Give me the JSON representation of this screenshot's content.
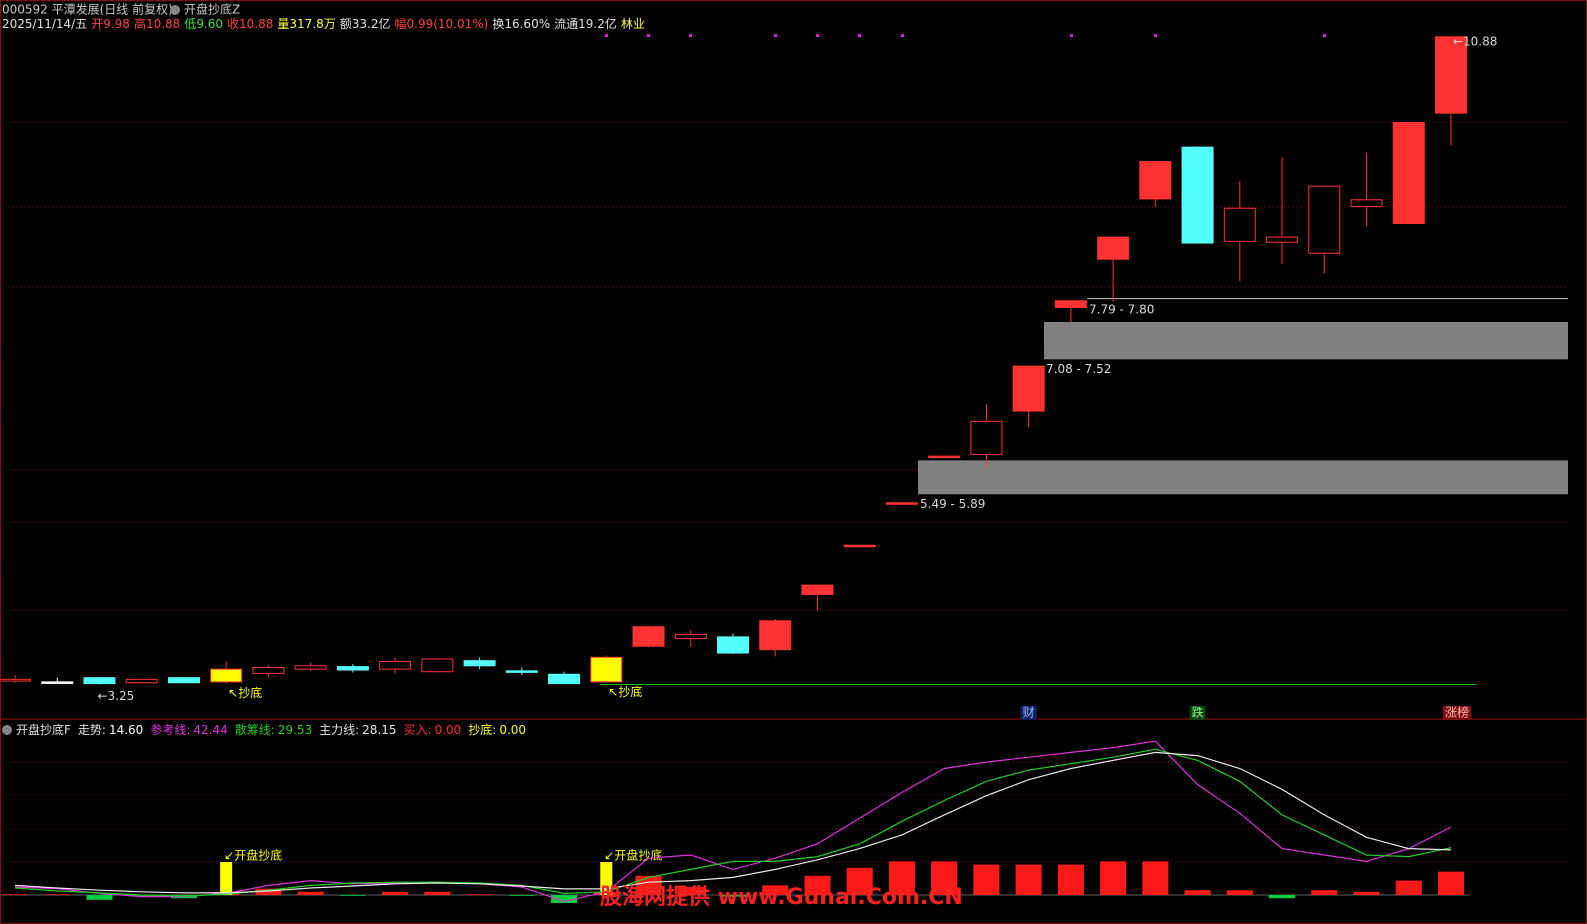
{
  "header": {
    "symbol": "000592 平潭发展(日线 前复权)",
    "indicator": "开盘抄底Z",
    "quote": [
      {
        "text": "2025/11/14/五",
        "color": "#e0e0e0"
      },
      {
        "text": "开9.98",
        "color": "#ff4040"
      },
      {
        "text": "高10.88",
        "color": "#ff4040"
      },
      {
        "text": "低9.60",
        "color": "#40e040"
      },
      {
        "text": "收10.88",
        "color": "#ff4040"
      },
      {
        "text": "量317.8万",
        "color": "#ffff40"
      },
      {
        "text": "额33.2亿",
        "color": "#e0e0e0"
      },
      {
        "text": "幅0.99(10.01%)",
        "color": "#ff4040"
      },
      {
        "text": "换16.60%",
        "color": "#e0e0e0"
      },
      {
        "text": "流通19.2亿",
        "color": "#e0e0e0"
      },
      {
        "text": "林业",
        "color": "#ffff40"
      }
    ]
  },
  "chart_data": [
    {
      "type": "candlestick",
      "open": [
        3.29,
        3.28,
        3.33,
        3.27,
        3.33,
        3.28,
        3.38,
        3.43,
        3.46,
        3.43,
        3.4,
        3.53,
        3.41,
        3.37,
        3.28,
        3.7,
        3.79,
        3.81,
        3.66,
        4.31,
        4.89,
        5.39,
        5.94,
        5.96,
        6.47,
        7.69,
        8.26,
        8.97,
        9.58,
        8.47,
        8.46,
        8.33,
        8.88,
        8.68,
        9.98
      ],
      "high": [
        3.36,
        3.33,
        3.34,
        3.32,
        3.34,
        3.52,
        3.48,
        3.51,
        3.49,
        3.57,
        3.56,
        3.57,
        3.45,
        3.4,
        3.59,
        3.94,
        3.89,
        3.85,
        4.02,
        4.42,
        4.89,
        5.39,
        5.94,
        6.55,
        7.0,
        7.77,
        8.52,
        9.41,
        9.59,
        9.18,
        9.46,
        9.12,
        9.51,
        9.87,
        10.88
      ],
      "low": [
        3.27,
        3.26,
        3.25,
        3.26,
        3.27,
        3.26,
        3.34,
        3.41,
        3.39,
        3.38,
        3.39,
        3.43,
        3.36,
        3.26,
        3.27,
        3.69,
        3.69,
        3.61,
        3.58,
        4.12,
        4.89,
        5.39,
        5.94,
        5.81,
        6.28,
        7.52,
        7.76,
        8.88,
        8.45,
        8.0,
        8.2,
        8.09,
        8.65,
        8.68,
        9.6
      ],
      "close": [
        3.31,
        3.28,
        3.26,
        3.31,
        3.27,
        3.43,
        3.45,
        3.47,
        3.42,
        3.52,
        3.55,
        3.47,
        3.4,
        3.26,
        3.57,
        3.93,
        3.84,
        3.62,
        4.0,
        4.42,
        4.89,
        5.39,
        5.94,
        6.35,
        7.0,
        7.77,
        8.52,
        9.41,
        8.45,
        8.86,
        8.52,
        9.12,
        8.96,
        9.87,
        10.88
      ],
      "style": [
        "up",
        "flat",
        "down",
        "up",
        "down",
        "signal",
        "up",
        "up",
        "down",
        "up",
        "up",
        "down",
        "down",
        "down",
        "signal",
        "filled",
        "up",
        "down",
        "filled",
        "filled",
        "filled",
        "filled",
        "filled",
        "up",
        "filled",
        "filled",
        "filled",
        "filled",
        "down",
        "up",
        "up",
        "up",
        "up",
        "filled",
        "filled"
      ],
      "colors": {
        "up": "#ff3232",
        "down": "#54ffff",
        "signal": "#ffff00",
        "flat": "#ffffff"
      },
      "ylim": [
        2.89,
        10.96
      ],
      "zones": [
        {
          "low": 7.08,
          "high": 7.52,
          "label": "7.08 - 7.52"
        },
        {
          "low": 5.49,
          "high": 5.89,
          "label": "5.49 - 5.89"
        }
      ],
      "level_line": {
        "low": 7.79,
        "high": 7.8,
        "label": "7.79 - 7.80"
      },
      "support_line": 3.25,
      "annotations": {
        "low": "←3.25",
        "high": "←10.88",
        "signal": "↖抄底"
      },
      "events": [
        "财",
        "跌",
        "涨榜"
      ]
    },
    {
      "type": "line",
      "title": "开盘抄底F",
      "ylim": [
        -10.6,
        108
      ],
      "series": [
        {
          "name": "走势:",
          "last_label": "14.60",
          "color": "#ffffff",
          "bar_colors": [
            "#ff1a1a",
            "#00d040"
          ],
          "kind": "bar",
          "values": [
            0.5,
            0.5,
            -3,
            -0.5,
            -2,
            2,
            4,
            2,
            -0.5,
            2,
            2,
            0.5,
            -0.5,
            -5,
            2,
            12,
            5,
            -1,
            6,
            12,
            17,
            21,
            21,
            19,
            19,
            19,
            21,
            21,
            3,
            3,
            -2,
            3,
            2,
            9,
            14.6
          ]
        },
        {
          "name": "参考线:",
          "last_label": "42.44",
          "color": "#e030e0",
          "kind": "line",
          "values": [
            5,
            4,
            1,
            -1,
            -1,
            1,
            6,
            9,
            7,
            7.5,
            8,
            7,
            5,
            -4,
            2,
            23,
            25,
            16,
            23,
            32,
            48,
            64,
            79,
            83,
            86,
            89,
            92,
            96,
            69,
            51,
            29,
            25,
            21,
            29,
            42.44
          ]
        },
        {
          "name": "散筹线:",
          "last_label": "29.53",
          "color": "#20d020",
          "kind": "line",
          "values": [
            4.4,
            2.5,
            1.3,
            0,
            -0.6,
            0.6,
            3,
            6,
            7.5,
            8,
            8,
            7.5,
            6,
            1,
            2,
            11,
            16,
            21,
            21,
            24,
            32,
            46,
            59,
            71,
            78,
            82,
            86,
            91,
            84,
            71,
            50,
            37.5,
            25,
            24,
            29.53
          ]
        },
        {
          "name": "主力线:",
          "last_label": "28.15",
          "color": "#e8e8e8",
          "kind": "line",
          "values": [
            6,
            4.4,
            3,
            2,
            1.3,
            1.3,
            2.5,
            4.4,
            5.6,
            7,
            7.5,
            7,
            5.6,
            3.8,
            3.8,
            8,
            9,
            11,
            16,
            22,
            29,
            37.5,
            50,
            62,
            72,
            79,
            84,
            89,
            87,
            79,
            66,
            50,
            36,
            29,
            28.15
          ]
        },
        {
          "name": "买入:",
          "last_label": "0.00",
          "color": "#ff3030",
          "kind": "none"
        },
        {
          "name": "抄底:",
          "last_label": "0.00",
          "color": "#ffff00",
          "kind": "signal",
          "values": [
            0,
            0,
            0,
            0,
            0,
            20.6,
            0,
            0,
            0,
            0,
            0,
            0,
            0,
            0,
            20.6,
            0,
            0,
            0,
            0,
            0,
            0,
            0,
            0,
            0,
            0,
            0,
            0,
            0,
            0,
            0,
            0,
            0,
            0,
            0,
            0
          ]
        }
      ],
      "signal_label": "↙开盘抄底"
    }
  ],
  "watermark": "股海网提供 www.Guhai.Com.CN"
}
